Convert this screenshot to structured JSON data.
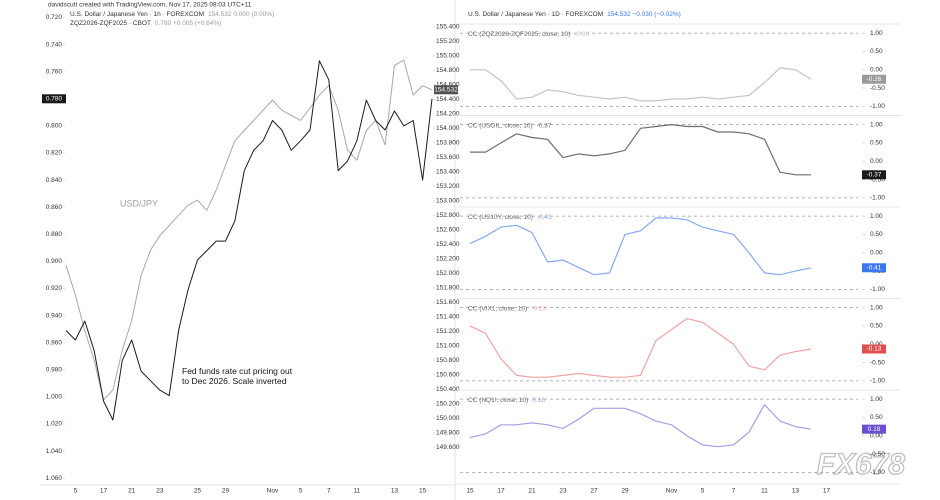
{
  "header": "davidscutt created with TradingView.com, Nov 17, 2025 08:03 UTC+11",
  "watermark": "FX678",
  "chart_data": [
    {
      "type": "line",
      "annotations": [
        "USD/JPY",
        "Fed funds rate cut pricing out to Dec 2026. Scale inverted"
      ],
      "categories": [
        null,
        "5",
        null,
        null,
        "17",
        null,
        null,
        "21",
        null,
        null,
        "23",
        null,
        null,
        null,
        "25",
        null,
        null,
        "29",
        null,
        null,
        null,
        null,
        "Nov",
        null,
        null,
        "5",
        null,
        null,
        "7",
        null,
        null,
        "11",
        null,
        null,
        null,
        "13",
        null,
        null,
        "15",
        null
      ],
      "series": [
        {
          "name": "U.S. Dollar / Japanese Yen · 1h · FOREXCOM",
          "quote": "154.532  0.000 (0.00%)",
          "color": "#a8a8a8",
          "axis": "y2",
          "badge": 154.532,
          "badge_color": "#505050",
          "values": [
            152.11,
            151.7,
            151.21,
            150.8,
            150.25,
            150.39,
            150.94,
            151.35,
            151.97,
            152.32,
            152.52,
            152.66,
            152.8,
            152.94,
            153.01,
            152.87,
            153.15,
            153.49,
            153.83,
            153.97,
            154.11,
            154.25,
            154.39,
            154.25,
            154.18,
            154.11,
            154.28,
            154.46,
            154.59,
            154.25,
            153.7,
            153.56,
            153.97,
            154.11,
            153.77,
            154.87,
            154.94,
            154.46,
            154.59,
            154.53
          ]
        },
        {
          "name": "ZQZ2026-ZQF2025 · CBOT",
          "quote": "0.780  +0.005 (+0.64%)",
          "color": "#1a1a1a",
          "badge": {
            "value": 0.78,
            "label": "0.780"
          },
          "badge_color": "#1a1a1a",
          "values": [
            0.951,
            0.958,
            0.944,
            0.966,
            1.003,
            1.017,
            0.973,
            0.958,
            0.981,
            0.988,
            0.995,
            0.999,
            0.951,
            0.921,
            0.899,
            0.892,
            0.885,
            0.885,
            0.87,
            0.833,
            0.818,
            0.811,
            0.796,
            0.803,
            0.818,
            0.811,
            0.803,
            0.752,
            0.766,
            0.833,
            0.826,
            0.811,
            0.781,
            0.796,
            0.803,
            0.789,
            0.8,
            0.796,
            0.84,
            0.78
          ]
        }
      ],
      "ylim": [
        1.065,
        0.713
      ],
      "yticks": [
        {
          "value": 0.72,
          "label": "0.720"
        },
        {
          "value": 0.74,
          "label": "0.740"
        },
        {
          "value": 0.76,
          "label": "0.760"
        },
        {
          "value": 0.78,
          "label": "0.780"
        },
        {
          "value": 0.8,
          "label": "0.800"
        },
        {
          "value": 0.82,
          "label": "0.820"
        },
        {
          "value": 0.84,
          "label": "0.840"
        },
        {
          "value": 0.86,
          "label": "0.860"
        },
        {
          "value": 0.88,
          "label": "0.880"
        },
        {
          "value": 0.9,
          "label": "0.900"
        },
        {
          "value": 0.92,
          "label": "0.920"
        },
        {
          "value": 0.94,
          "label": "0.940"
        },
        {
          "value": 0.96,
          "label": "0.960"
        },
        {
          "value": 0.98,
          "label": "0.980"
        },
        {
          "value": 1.0,
          "label": "1.000"
        },
        {
          "value": 1.02,
          "label": "1.020"
        },
        {
          "value": 1.04,
          "label": "1.040"
        },
        {
          "value": 1.06,
          "label": "1.060"
        }
      ],
      "y2lim": [
        149.08,
        155.66
      ],
      "y2ticks": [
        {
          "value": 155.4,
          "label": "155.400"
        },
        {
          "value": 155.2,
          "label": "155.200"
        },
        {
          "value": 155.0,
          "label": "155.000"
        },
        {
          "value": 154.8,
          "label": "154.800"
        },
        {
          "value": 154.6,
          "label": "154.600"
        },
        {
          "value": 154.4,
          "label": "154.400"
        },
        {
          "value": 154.2,
          "label": "154.200"
        },
        {
          "value": 154.0,
          "label": "154.000"
        },
        {
          "value": 153.8,
          "label": "153.800"
        },
        {
          "value": 153.6,
          "label": "153.600"
        },
        {
          "value": 153.4,
          "label": "153.400"
        },
        {
          "value": 153.2,
          "label": "153.200"
        },
        {
          "value": 153.0,
          "label": "153.000"
        },
        {
          "value": 152.8,
          "label": "152.800"
        },
        {
          "value": 152.6,
          "label": "152.600"
        },
        {
          "value": 152.4,
          "label": "152.400"
        },
        {
          "value": 152.2,
          "label": "152.200"
        },
        {
          "value": 152.0,
          "label": "152.000"
        },
        {
          "value": 151.8,
          "label": "151.800"
        },
        {
          "value": 151.6,
          "label": "151.600"
        },
        {
          "value": 151.4,
          "label": "151.400"
        },
        {
          "value": 151.2,
          "label": "151.200"
        },
        {
          "value": 151.0,
          "label": "151.000"
        },
        {
          "value": 150.8,
          "label": "150.800"
        },
        {
          "value": 150.6,
          "label": "150.600"
        },
        {
          "value": 150.4,
          "label": "150.400"
        },
        {
          "value": 150.2,
          "label": "150.200"
        },
        {
          "value": 150.0,
          "label": "150.000"
        },
        {
          "value": 149.8,
          "label": "149.800"
        },
        {
          "value": 149.6,
          "label": "149.600"
        }
      ]
    },
    {
      "type": "line",
      "title": "U.S. Dollar / Japanese Yen · 1D · FOREXCOM",
      "quote": "154.532  −0.030 (−0.02%)",
      "categories": [
        "15",
        null,
        "17",
        null,
        "21",
        null,
        "23",
        null,
        "27",
        null,
        "29",
        null,
        null,
        "Nov",
        null,
        "5",
        null,
        "7",
        null,
        "11",
        null,
        "13",
        null,
        "17"
      ],
      "ylim": [
        -1.25,
        1.25
      ],
      "yticks": [
        {
          "value": 1,
          "label": "1.00"
        },
        {
          "value": 0.5,
          "label": "0.50"
        },
        {
          "value": 0,
          "label": "0.00"
        },
        {
          "value": -0.5,
          "label": "-0.50"
        },
        {
          "value": -1,
          "label": "-1.00"
        }
      ],
      "hlines": [
        1,
        -1
      ],
      "panes": [
        {
          "name": "CC (ZQZ2026-ZQF2025, close, 10)",
          "color": "#c4c4c4",
          "badge_color": "#9a9a9a",
          "values": [
            0.0,
            0.0,
            -0.3,
            -0.8,
            -0.75,
            -0.55,
            -0.6,
            -0.7,
            -0.75,
            -0.8,
            -0.75,
            -0.85,
            -0.85,
            -0.8,
            -0.8,
            -0.75,
            -0.8,
            -0.75,
            -0.7,
            -0.35,
            0.05,
            0.0,
            -0.26,
            null
          ]
        },
        {
          "name": "CC (USOIL, close, 10)",
          "color": "#6e6e6e",
          "badge_color": "#1a1a1a",
          "values": [
            0.25,
            0.25,
            0.5,
            0.75,
            0.65,
            0.6,
            0.1,
            0.2,
            0.15,
            0.2,
            0.3,
            0.9,
            0.95,
            1.0,
            0.95,
            0.95,
            0.8,
            0.8,
            0.75,
            0.6,
            -0.3,
            -0.37,
            -0.37,
            null
          ]
        },
        {
          "name": "CC (US10Y, close, 10)",
          "color": "#86a9f2",
          "badge_color": "#3b78ef",
          "values": [
            0.25,
            0.45,
            0.7,
            0.75,
            0.55,
            -0.25,
            -0.2,
            -0.4,
            -0.6,
            -0.55,
            0.5,
            0.6,
            0.95,
            0.95,
            0.9,
            0.7,
            0.6,
            0.5,
            0.0,
            -0.55,
            -0.6,
            -0.5,
            -0.41,
            null
          ]
        },
        {
          "name": "CC (VIX1, close, 10)",
          "color": "#f0a3a3",
          "badge_color": "#e04f4f",
          "values": [
            0.5,
            0.3,
            -0.4,
            -0.85,
            -0.9,
            -0.9,
            -0.85,
            -0.8,
            -0.85,
            -0.9,
            -0.9,
            -0.85,
            0.1,
            0.4,
            0.7,
            0.6,
            0.3,
            0.0,
            -0.6,
            -0.7,
            -0.3,
            -0.2,
            -0.13,
            null
          ]
        },
        {
          "name": "CC (NQ1!, close, 10)",
          "color": "#ab9de3",
          "badge_color": "#6a4fd0",
          "values": [
            -0.05,
            0.05,
            0.3,
            0.3,
            0.35,
            0.3,
            0.2,
            0.45,
            0.75,
            0.75,
            0.75,
            0.6,
            0.4,
            0.3,
            0.0,
            -0.25,
            -0.3,
            -0.25,
            0.1,
            0.85,
            0.4,
            0.25,
            0.18,
            null
          ]
        }
      ]
    }
  ]
}
